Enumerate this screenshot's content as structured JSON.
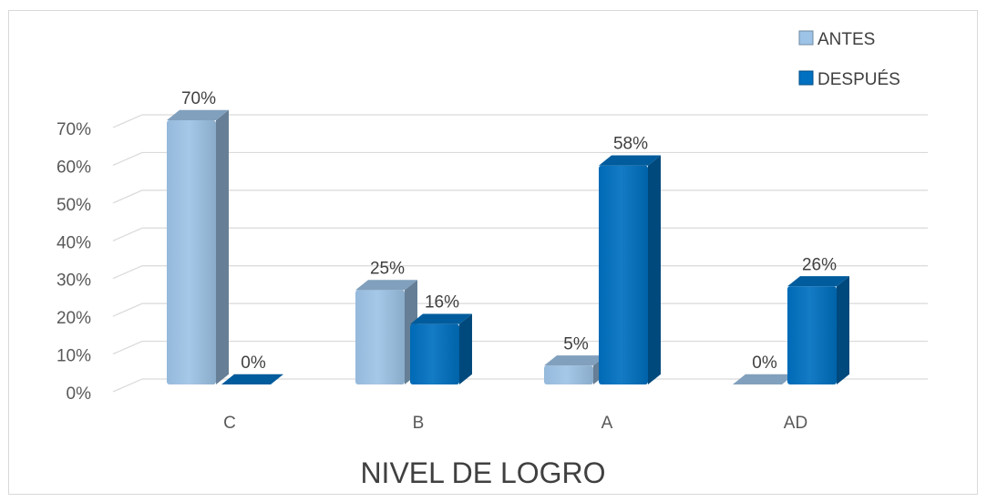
{
  "chart_data": {
    "type": "bar",
    "title": "",
    "xlabel": "NIVEL DE LOGRO",
    "ylabel": "",
    "categories": [
      "C",
      "B",
      "A",
      "AD"
    ],
    "series": [
      {
        "name": "ANTES",
        "values": [
          70,
          25,
          5,
          0
        ],
        "labels": [
          "70%",
          "25%",
          "5%",
          "0%"
        ],
        "color": "#9dc3e6"
      },
      {
        "name": "DESPUÉS",
        "values": [
          0,
          16,
          58,
          26
        ],
        "labels": [
          "0%",
          "16%",
          "58%",
          "26%"
        ],
        "color": "#0070c0"
      }
    ],
    "ylim": [
      0,
      70
    ],
    "yticks": [
      "0%",
      "10%",
      "20%",
      "30%",
      "40%",
      "50%",
      "60%",
      "70%"
    ],
    "legend_position": "top-right",
    "grid": true,
    "style": "3d-column"
  }
}
